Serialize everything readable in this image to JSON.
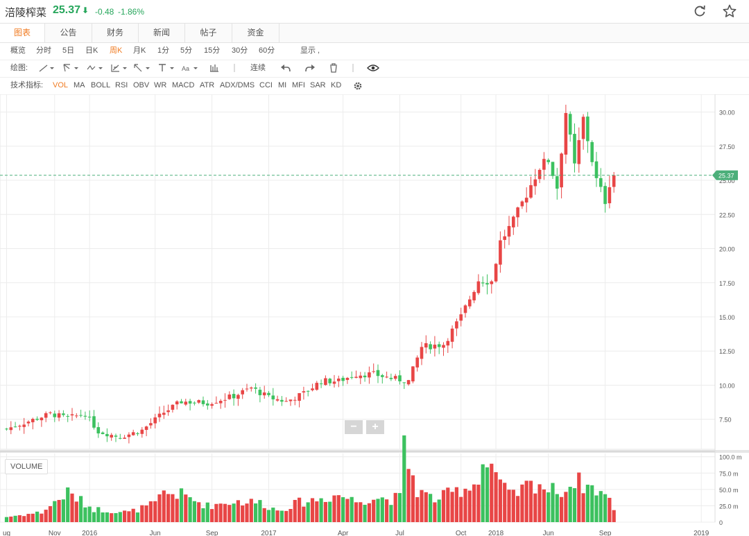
{
  "stock": {
    "name": "涪陵榨菜",
    "price": "25.37",
    "arrow": "⬇",
    "change": "-0.48",
    "change_pct": "-1.86%"
  },
  "header_icons": [
    "refresh-icon",
    "star-icon"
  ],
  "tabs": [
    "图表",
    "公告",
    "财务",
    "新闻",
    "帖子",
    "资金"
  ],
  "periods": {
    "label": "概览",
    "items": [
      "分时",
      "5日",
      "日K",
      "周K",
      "月K",
      "1分",
      "5分",
      "15分",
      "30分",
      "60分"
    ],
    "active": "周K",
    "show_label": "显示 ,"
  },
  "drawing": {
    "label": "绘图:",
    "connect_label": "连续"
  },
  "indicators": {
    "label": "技术指标:",
    "items": [
      "VOL",
      "MA",
      "BOLL",
      "RSI",
      "OBV",
      "WR",
      "MACD",
      "ATR",
      "ADX/DMS",
      "CCI",
      "MI",
      "MFI",
      "SAR",
      "KD"
    ],
    "active": "VOL"
  },
  "volume_label": "VOLUME",
  "zoom": {
    "minus": "−",
    "plus": "+"
  },
  "colors": {
    "up": "#e84646",
    "down": "#3cc15f",
    "accent": "#f07b22",
    "price_line": "#4caf7a"
  },
  "chart_data": {
    "type": "candlestick",
    "price_axis": {
      "ticks": [
        7.5,
        10.0,
        12.5,
        15.0,
        17.5,
        20.0,
        22.5,
        25.0,
        27.5,
        30.0
      ],
      "tick_labels": [
        "7.50",
        "10.00",
        "12.50",
        "15.00",
        "17.50",
        "20.00",
        "22.50",
        "25.00",
        "27.50",
        "30.00"
      ],
      "range": [
        5.3,
        31.3
      ]
    },
    "last_price": {
      "value": 25.37,
      "label": "25.37"
    },
    "volume_axis": {
      "ticks": [
        0,
        25,
        50,
        75,
        100
      ],
      "tick_labels": [
        "0",
        "25.0 m",
        "50.0 m",
        "75.0 m",
        "100.0 m"
      ],
      "range": [
        0,
        105
      ]
    },
    "x_axis": {
      "labels": [
        "ug",
        "Nov",
        "2016",
        "Jun",
        "Sep",
        "2017",
        "Apr",
        "Jul",
        "Oct",
        "2018",
        "Jun",
        "Sep",
        "2019"
      ],
      "label_index": [
        0,
        11,
        19,
        34,
        47,
        60,
        77,
        90,
        104,
        112,
        124,
        137,
        159
      ]
    },
    "close_points": [
      [
        0,
        6.8
      ],
      [
        10,
        7.9
      ],
      [
        14,
        7.6
      ],
      [
        18,
        7.9
      ],
      [
        21,
        6.6
      ],
      [
        26,
        6.2
      ],
      [
        31,
        6.7
      ],
      [
        36,
        8.0
      ],
      [
        40,
        8.8
      ],
      [
        46,
        8.7
      ],
      [
        52,
        9.2
      ],
      [
        56,
        9.8
      ],
      [
        60,
        9.1
      ],
      [
        64,
        8.8
      ],
      [
        68,
        9.4
      ],
      [
        72,
        10.3
      ],
      [
        76,
        10.3
      ],
      [
        80,
        10.8
      ],
      [
        84,
        10.8
      ],
      [
        88,
        10.5
      ],
      [
        92,
        10.3
      ],
      [
        95,
        12.8
      ],
      [
        100,
        13.0
      ],
      [
        104,
        15.0
      ],
      [
        108,
        17.7
      ],
      [
        111,
        17.6
      ],
      [
        113,
        20.5
      ],
      [
        116,
        22.0
      ],
      [
        119,
        24.0
      ],
      [
        122,
        26.0
      ],
      [
        124,
        26.5
      ],
      [
        126,
        24.5
      ],
      [
        128,
        30.0
      ],
      [
        130,
        26.0
      ],
      [
        132,
        29.5
      ],
      [
        135,
        25.0
      ],
      [
        137,
        23.5
      ],
      [
        138,
        24.8
      ],
      [
        139,
        25.37
      ]
    ],
    "volume_points": [
      [
        0,
        8
      ],
      [
        8,
        15
      ],
      [
        14,
        45
      ],
      [
        20,
        20
      ],
      [
        28,
        15
      ],
      [
        34,
        28
      ],
      [
        36,
        45
      ],
      [
        40,
        42
      ],
      [
        46,
        25
      ],
      [
        52,
        32
      ],
      [
        58,
        30
      ],
      [
        62,
        18
      ],
      [
        67,
        30
      ],
      [
        72,
        36
      ],
      [
        76,
        42
      ],
      [
        80,
        32
      ],
      [
        84,
        38
      ],
      [
        88,
        35
      ],
      [
        90,
        38
      ],
      [
        91,
        112
      ],
      [
        94,
        48
      ],
      [
        98,
        35
      ],
      [
        104,
        50
      ],
      [
        107,
        58
      ],
      [
        109,
        88
      ],
      [
        111,
        88
      ],
      [
        113,
        55
      ],
      [
        116,
        40
      ],
      [
        119,
        55
      ],
      [
        122,
        60
      ],
      [
        124,
        48
      ],
      [
        126,
        50
      ],
      [
        128,
        48
      ],
      [
        130,
        65
      ],
      [
        132,
        58
      ],
      [
        135,
        50
      ],
      [
        137,
        42
      ],
      [
        139,
        22
      ]
    ]
  }
}
